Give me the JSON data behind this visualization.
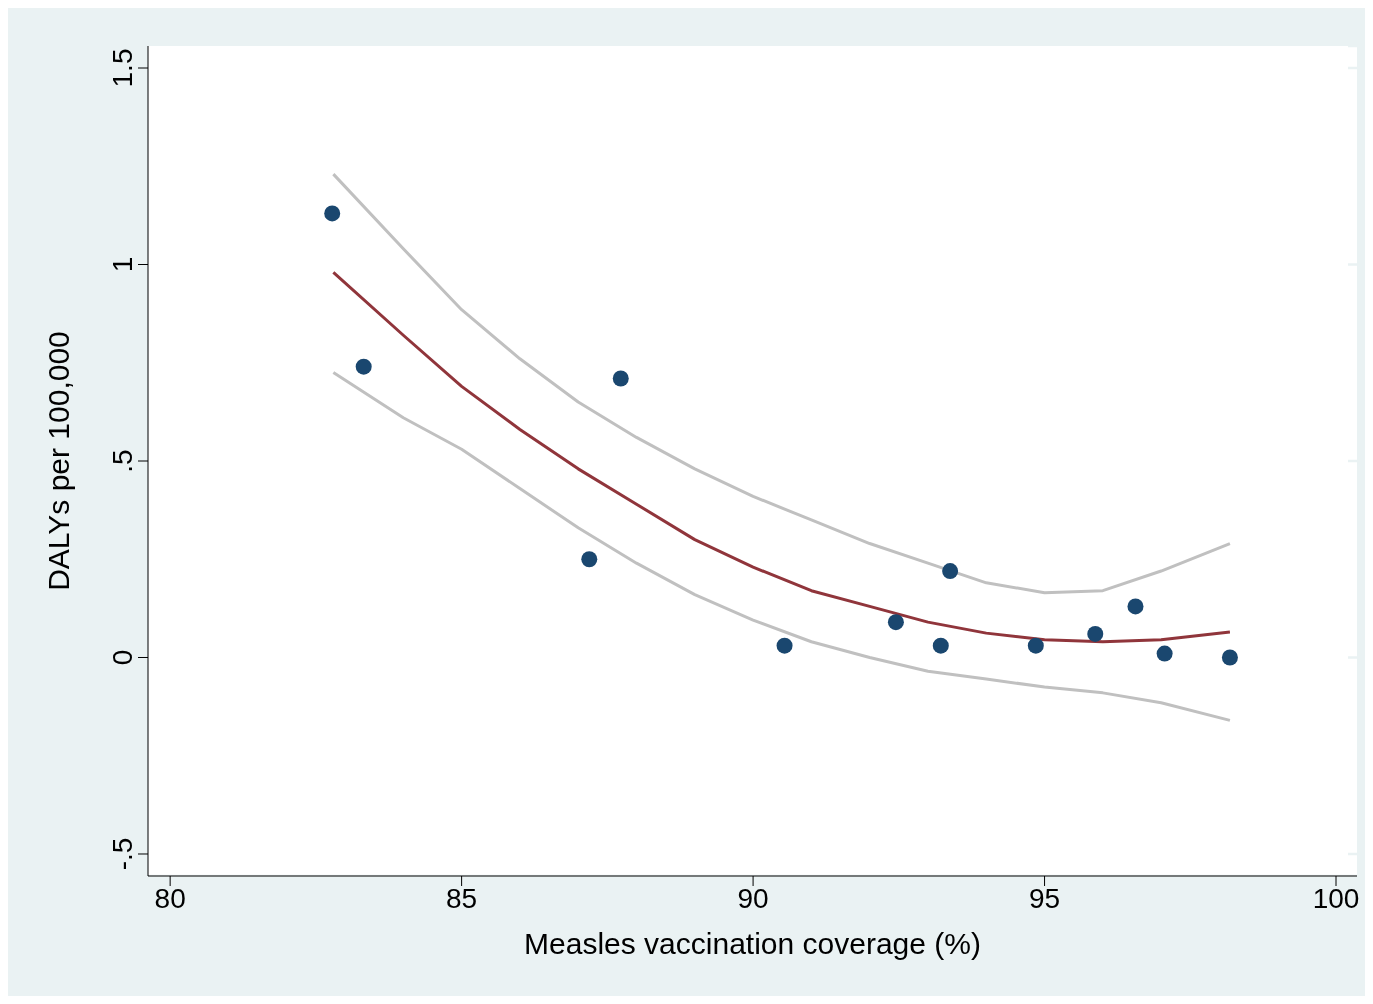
{
  "chart_data": {
    "type": "scatter",
    "xlabel": "Measles vaccination coverage (%)",
    "ylabel": "DALYs per 100,000",
    "xlim": [
      79.62,
      100.36
    ],
    "ylim": [
      -0.556,
      1.556
    ],
    "xticks": [
      80,
      85,
      90,
      95,
      100
    ],
    "yticks": [
      {
        "value": -0.5,
        "label": "-.5"
      },
      0,
      {
        "value": 0.5,
        "label": ".5"
      },
      1,
      {
        "value": 1.5,
        "label": "1.5"
      }
    ],
    "grid": "y",
    "legend": false,
    "marker": "circle",
    "series": [
      {
        "color": "#1a476f",
        "x": [
          82.78,
          83.32,
          87.19,
          87.73,
          90.54,
          92.45,
          93.22,
          93.38,
          94.85,
          95.87,
          96.56,
          97.06,
          98.18
        ],
        "values": [
          1.13,
          0.74,
          0.25,
          0.71,
          0.03,
          0.09,
          0.03,
          0.22,
          0.03,
          0.06,
          0.13,
          0.01,
          0.0
        ]
      },
      {
        "type": "line",
        "color": "#90353b",
        "marker": "none",
        "x": [
          82.8,
          84,
          85,
          86,
          87,
          88,
          89,
          90,
          91,
          92,
          93,
          94,
          95,
          96,
          97,
          98.18
        ],
        "values": [
          0.98,
          0.82,
          0.69,
          0.58,
          0.48,
          0.39,
          0.3,
          0.23,
          0.17,
          0.13,
          0.09,
          0.062,
          0.045,
          0.04,
          0.045,
          0.065
        ]
      },
      {
        "type": "line",
        "color": "#c0c0c0",
        "marker": "none",
        "x": [
          82.8,
          84,
          85,
          86,
          87,
          88,
          89,
          90,
          91,
          92,
          93,
          94,
          95,
          96,
          97,
          98.18
        ],
        "values": [
          1.23,
          1.04,
          0.885,
          0.76,
          0.65,
          0.56,
          0.48,
          0.41,
          0.35,
          0.29,
          0.24,
          0.19,
          0.165,
          0.17,
          0.22,
          0.29
        ]
      },
      {
        "type": "line",
        "color": "#c0c0c0",
        "marker": "none",
        "x": [
          82.8,
          84,
          85,
          86,
          87,
          88,
          89,
          90,
          91,
          92,
          93,
          94,
          95,
          96,
          97,
          98.18
        ],
        "values": [
          0.725,
          0.61,
          0.53,
          0.43,
          0.33,
          0.24,
          0.16,
          0.095,
          0.04,
          0.0,
          -0.035,
          -0.055,
          -0.075,
          -0.09,
          -0.115,
          -0.16
        ]
      }
    ]
  }
}
